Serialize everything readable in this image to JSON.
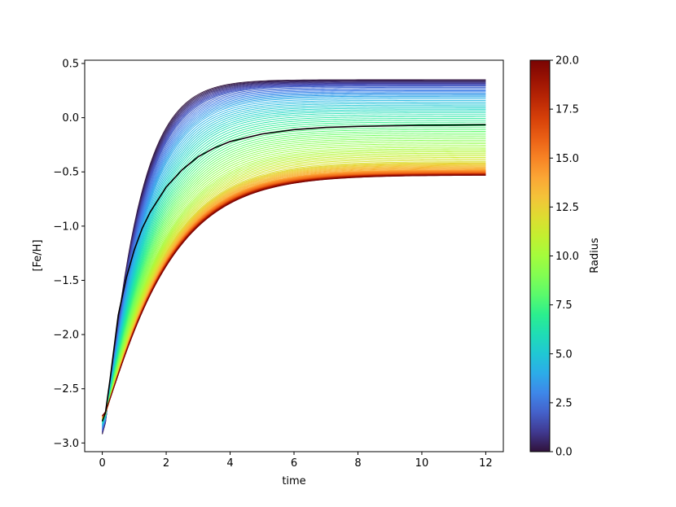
{
  "chart_data": {
    "type": "line",
    "xlabel": "time",
    "ylabel": "[Fe/H]",
    "xlim": [
      -0.55,
      12.55
    ],
    "ylim": [
      -3.08,
      0.53
    ],
    "x_ticks": [
      {
        "value": 0,
        "label": "0"
      },
      {
        "value": 2,
        "label": "2"
      },
      {
        "value": 4,
        "label": "4"
      },
      {
        "value": 6,
        "label": "6"
      },
      {
        "value": 8,
        "label": "8"
      },
      {
        "value": 10,
        "label": "10"
      },
      {
        "value": 12,
        "label": "12"
      }
    ],
    "y_ticks": [
      {
        "value": 0.5,
        "label": "0.5"
      },
      {
        "value": 0.0,
        "label": "0.0"
      },
      {
        "value": -0.5,
        "label": "−0.5"
      },
      {
        "value": -1.0,
        "label": "−1.0"
      },
      {
        "value": -1.5,
        "label": "−1.5"
      },
      {
        "value": -2.0,
        "label": "−2.0"
      },
      {
        "value": -2.5,
        "label": "−2.5"
      },
      {
        "value": -3.0,
        "label": "−3.0"
      }
    ],
    "grid": false,
    "colorbar": {
      "label": "Radius",
      "range": [
        0.0,
        20.0
      ],
      "colormap": "turbo",
      "ticks": [
        {
          "value": 0.0,
          "label": "0.0"
        },
        {
          "value": 2.5,
          "label": "2.5"
        },
        {
          "value": 5.0,
          "label": "5.0"
        },
        {
          "value": 7.5,
          "label": "7.5"
        },
        {
          "value": 10.0,
          "label": "10.0"
        },
        {
          "value": 12.5,
          "label": "12.5"
        },
        {
          "value": 15.0,
          "label": "15.0"
        },
        {
          "value": 17.5,
          "label": "17.5"
        },
        {
          "value": 20.0,
          "label": "20.0"
        }
      ]
    },
    "family": {
      "x_range": [
        0.0,
        12.0
      ],
      "radii": [
        0,
        2,
        4,
        6,
        8,
        10,
        12,
        14,
        16,
        18,
        20
      ],
      "start_feh": [
        -2.92,
        -2.88,
        -2.84,
        -2.81,
        -2.79,
        -2.78,
        -2.77,
        -2.76,
        -2.75,
        -2.75,
        -2.75
      ],
      "final_feh": [
        0.35,
        0.29,
        0.19,
        0.05,
        -0.12,
        -0.28,
        -0.41,
        -0.48,
        -0.51,
        -0.52,
        -0.53
      ],
      "timescale": [
        1.05,
        1.15,
        1.28,
        1.45,
        1.62,
        1.78,
        1.88,
        1.93,
        1.96,
        1.98,
        2.0
      ]
    },
    "highlight_series": {
      "color": "#000000",
      "x": [
        0,
        0.1,
        0.25,
        0.5,
        0.75,
        1.0,
        1.25,
        1.5,
        2.0,
        2.5,
        3.0,
        3.5,
        4.0,
        5.0,
        6.0,
        7.0,
        8.0,
        9.0,
        10.0,
        11.0,
        12.0
      ],
      "y": [
        -2.8,
        -2.72,
        -2.4,
        -1.82,
        -1.48,
        -1.22,
        -1.02,
        -0.87,
        -0.64,
        -0.48,
        -0.36,
        -0.28,
        -0.22,
        -0.15,
        -0.11,
        -0.09,
        -0.08,
        -0.075,
        -0.07,
        -0.068,
        -0.065
      ]
    }
  }
}
